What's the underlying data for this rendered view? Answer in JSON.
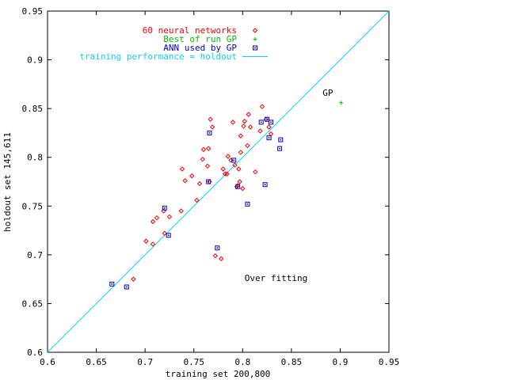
{
  "chart_data": {
    "type": "scatter",
    "title": "",
    "xlabel": "training set 200,800",
    "ylabel": "holdout set 145,611",
    "xlim": [
      0.6,
      0.95
    ],
    "ylim": [
      0.6,
      0.95
    ],
    "xticks": [
      "0.6",
      "0.65",
      "0.7",
      "0.75",
      "0.8",
      "0.85",
      "0.9",
      "0.95"
    ],
    "yticks": [
      "0.6",
      "0.65",
      "0.7",
      "0.75",
      "0.8",
      "0.85",
      "0.9",
      "0.95"
    ],
    "grid": false,
    "legend_position": "top-left",
    "annotations": [
      {
        "text": "GP",
        "x": 0.882,
        "y": 0.863
      },
      {
        "text": "Over fitting",
        "x": 0.802,
        "y": 0.673
      }
    ],
    "series": [
      {
        "name": "60 neural networks",
        "color": "#ff0000",
        "marker": "diamond",
        "points": [
          [
            0.688,
            0.675
          ],
          [
            0.701,
            0.714
          ],
          [
            0.708,
            0.711
          ],
          [
            0.708,
            0.734
          ],
          [
            0.712,
            0.738
          ],
          [
            0.719,
            0.745
          ],
          [
            0.72,
            0.722
          ],
          [
            0.725,
            0.739
          ],
          [
            0.737,
            0.745
          ],
          [
            0.738,
            0.788
          ],
          [
            0.741,
            0.776
          ],
          [
            0.748,
            0.781
          ],
          [
            0.753,
            0.756
          ],
          [
            0.756,
            0.773
          ],
          [
            0.759,
            0.798
          ],
          [
            0.76,
            0.808
          ],
          [
            0.764,
            0.791
          ],
          [
            0.765,
            0.809
          ],
          [
            0.766,
            0.775
          ],
          [
            0.767,
            0.839
          ],
          [
            0.769,
            0.831
          ],
          [
            0.772,
            0.699
          ],
          [
            0.778,
            0.696
          ],
          [
            0.78,
            0.788
          ],
          [
            0.782,
            0.783
          ],
          [
            0.784,
            0.783
          ],
          [
            0.785,
            0.801
          ],
          [
            0.788,
            0.797
          ],
          [
            0.79,
            0.836
          ],
          [
            0.792,
            0.792
          ],
          [
            0.794,
            0.77
          ],
          [
            0.795,
            0.771
          ],
          [
            0.796,
            0.788
          ],
          [
            0.797,
            0.775
          ],
          [
            0.798,
            0.805
          ],
          [
            0.798,
            0.822
          ],
          [
            0.8,
            0.768
          ],
          [
            0.801,
            0.832
          ],
          [
            0.802,
            0.837
          ],
          [
            0.805,
            0.812
          ],
          [
            0.806,
            0.844
          ],
          [
            0.808,
            0.831
          ],
          [
            0.813,
            0.785
          ],
          [
            0.818,
            0.827
          ],
          [
            0.82,
            0.852
          ],
          [
            0.824,
            0.839
          ],
          [
            0.827,
            0.831
          ],
          [
            0.829,
            0.824
          ]
        ]
      },
      {
        "name": "Best of run GP",
        "color": "#00c000",
        "marker": "plus",
        "points": [
          [
            0.901,
            0.856
          ]
        ]
      },
      {
        "name": "ANN used by GP",
        "color": "#0000c8",
        "marker": "square",
        "points": [
          [
            0.666,
            0.67
          ],
          [
            0.681,
            0.667
          ],
          [
            0.72,
            0.748
          ],
          [
            0.724,
            0.72
          ],
          [
            0.765,
            0.775
          ],
          [
            0.766,
            0.825
          ],
          [
            0.774,
            0.707
          ],
          [
            0.791,
            0.797
          ],
          [
            0.795,
            0.77
          ],
          [
            0.805,
            0.752
          ],
          [
            0.819,
            0.836
          ],
          [
            0.823,
            0.772
          ],
          [
            0.825,
            0.839
          ],
          [
            0.827,
            0.82
          ],
          [
            0.829,
            0.836
          ],
          [
            0.838,
            0.809
          ],
          [
            0.839,
            0.818
          ]
        ]
      },
      {
        "name": "training performance = holdout",
        "color": "#00d8ff",
        "marker": "line",
        "points": [
          [
            0.6,
            0.6
          ],
          [
            0.95,
            0.95
          ]
        ]
      }
    ]
  }
}
